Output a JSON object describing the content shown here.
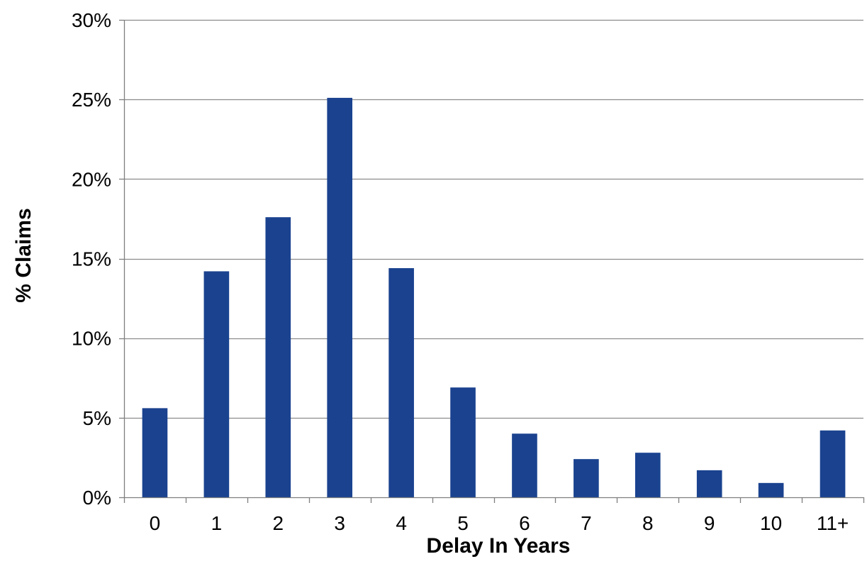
{
  "chart_data": {
    "type": "bar",
    "title": "",
    "xlabel": "Delay In Years",
    "ylabel": "% Claims",
    "categories": [
      "0",
      "1",
      "2",
      "3",
      "4",
      "5",
      "6",
      "7",
      "8",
      "9",
      "10",
      "11+"
    ],
    "values": [
      5.6,
      14.2,
      17.6,
      25.1,
      14.4,
      6.9,
      4.0,
      2.4,
      2.8,
      1.7,
      0.9,
      4.2
    ],
    "value_unit": "%",
    "ylim": [
      0,
      30
    ],
    "yticks": [
      0,
      5,
      10,
      15,
      20,
      25,
      30
    ],
    "ytick_labels": [
      "0%",
      "5%",
      "10%",
      "15%",
      "20%",
      "25%",
      "30%"
    ],
    "grid": true,
    "legend": "none",
    "colors": {
      "bar": "#1a428f",
      "grid": "#8c8c8c",
      "axis": "#7f7f7f"
    }
  }
}
